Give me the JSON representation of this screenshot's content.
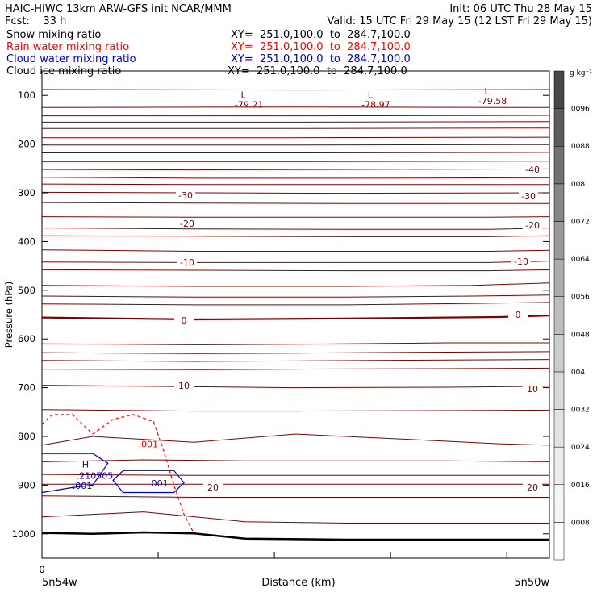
{
  "header": {
    "line1_left": "HAIC-HIWC 13km ARW-GFS init    NCAR/MMM",
    "line1_right": "Init: 06 UTC Thu 28 May 15",
    "line2_left": "Fcst:    33 h",
    "line2_right": "Valid: 15 UTC Fri 29 May 15 (12 LST Fri 29 May 15)",
    "fields": [
      {
        "name": "Snow mixing ratio",
        "xy": "XY=  251.0,100.0  to  284.7,100.0",
        "color": "#000000"
      },
      {
        "name": "Rain water mixing ratio",
        "xy": "XY=  251.0,100.0  to  284.7,100.0",
        "color": "#ff0000"
      },
      {
        "name": "Cloud water mixing ratio",
        "xy": "XY=  251.0,100.0  to  284.7,100.0",
        "color": "#0000cc"
      },
      {
        "name": "Cloud ice mixing ratio",
        "xy": "XY=  251.0,100.0  to  284.7,100.0",
        "color": "#000000"
      }
    ]
  },
  "chart_data": {
    "type": "line",
    "xlabel": "Distance (km)",
    "ylabel": "Pressure (hPa)",
    "x_tick_labels": [
      "0"
    ],
    "x_end_labels": {
      "left": "5n54w",
      "right": "5n50w"
    },
    "y_ticks": [
      100,
      200,
      300,
      400,
      500,
      600,
      700,
      800,
      900,
      1000
    ],
    "ylim": [
      1050,
      50
    ],
    "xlim": [
      0,
      100
    ],
    "colorbar": {
      "unit": "g kg⁻¹",
      "tick_labels": [
        ".0008",
        ".0016",
        ".0024",
        ".0032",
        ".004",
        ".0048",
        ".0056",
        ".0064",
        ".0072",
        ".008",
        ".0088",
        ".0096"
      ],
      "shades": [
        "#ffffff",
        "#f6f6f6",
        "#ededed",
        "#e3e3e3",
        "#d8d8d8",
        "#cccccc",
        "#bdbdbd",
        "#adadad",
        "#9a9a9a",
        "#868686",
        "#717171",
        "#5c5c5c",
        "#474747"
      ]
    },
    "temperature_contours": {
      "color": "#800000",
      "lines": [
        {
          "x": [
            0,
            50,
            100
          ],
          "p": [
            88,
            89,
            88
          ]
        },
        {
          "x": [
            0,
            50,
            100
          ],
          "p": [
            125,
            124,
            125
          ]
        },
        {
          "x": [
            0,
            50,
            100
          ],
          "p": [
            142,
            142,
            141
          ]
        },
        {
          "x": [
            0,
            50,
            100
          ],
          "p": [
            155,
            155,
            154
          ]
        },
        {
          "x": [
            0,
            50,
            100
          ],
          "p": [
            168,
            168,
            167
          ]
        },
        {
          "x": [
            0,
            50,
            100
          ],
          "p": [
            187,
            187,
            186
          ]
        },
        {
          "x": [
            0,
            50,
            100
          ],
          "p": [
            202,
            202,
            201
          ]
        },
        {
          "x": [
            0,
            50,
            100
          ],
          "p": [
            218,
            218,
            217
          ]
        },
        {
          "x": [
            0,
            50,
            100
          ],
          "p": [
            236,
            236,
            235
          ]
        },
        {
          "x": [
            0,
            30,
            60,
            100
          ],
          "p": [
            252,
            253,
            252,
            251
          ]
        },
        {
          "x": [
            0,
            30,
            60,
            100
          ],
          "p": [
            268,
            270,
            270,
            269
          ]
        },
        {
          "x": [
            0,
            30,
            60,
            100
          ],
          "p": [
            282,
            283,
            283,
            283
          ]
        },
        {
          "x": [
            0,
            30,
            60,
            100
          ],
          "p": [
            299,
            300,
            301,
            300
          ]
        },
        {
          "x": [
            0,
            30,
            60,
            88,
            100
          ],
          "p": [
            320,
            321,
            322,
            322,
            322
          ]
        },
        {
          "x": [
            0,
            30,
            60,
            88,
            100
          ],
          "p": [
            349,
            350,
            350,
            350,
            349
          ]
        },
        {
          "x": [
            0,
            30,
            60,
            88,
            100
          ],
          "p": [
            372,
            374,
            375,
            375,
            372
          ]
        },
        {
          "x": [
            0,
            30,
            60,
            88,
            100
          ],
          "p": [
            388,
            389,
            390,
            390,
            388
          ]
        },
        {
          "x": [
            0,
            30,
            60,
            88,
            100
          ],
          "p": [
            417,
            420,
            420,
            420,
            418
          ]
        },
        {
          "x": [
            0,
            30,
            60,
            88,
            100
          ],
          "p": [
            442,
            443,
            443,
            443,
            440
          ]
        },
        {
          "x": [
            0,
            30,
            60,
            88,
            100
          ],
          "p": [
            458,
            459,
            460,
            460,
            458
          ]
        },
        {
          "x": [
            0,
            30,
            60,
            85,
            100
          ],
          "p": [
            490,
            492,
            492,
            490,
            485
          ]
        },
        {
          "x": [
            0,
            30,
            60,
            85,
            100
          ],
          "p": [
            512,
            514,
            514,
            512,
            510
          ]
        },
        {
          "x": [
            0,
            30,
            60,
            85,
            100
          ],
          "p": [
            528,
            530,
            530,
            527,
            525
          ]
        },
        {
          "x": [
            0,
            30,
            50,
            80,
            100
          ],
          "p": [
            610,
            612,
            611,
            608,
            608
          ]
        },
        {
          "x": [
            0,
            30,
            50,
            80,
            100
          ],
          "p": [
            628,
            630,
            629,
            627,
            626
          ]
        },
        {
          "x": [
            0,
            30,
            50,
            80,
            100
          ],
          "p": [
            644,
            646,
            645,
            643,
            642
          ]
        },
        {
          "x": [
            0,
            30,
            50,
            80,
            100
          ],
          "p": [
            662,
            663,
            662,
            661,
            660
          ]
        },
        {
          "x": [
            0,
            30,
            50,
            80,
            100
          ],
          "p": [
            695,
            698,
            700,
            699,
            697
          ]
        },
        {
          "x": [
            0,
            30,
            50,
            80,
            100
          ],
          "p": [
            745,
            748,
            748,
            747,
            746
          ]
        },
        {
          "x": [
            0,
            10,
            30,
            50,
            70,
            90,
            100
          ],
          "p": [
            818,
            800,
            812,
            795,
            805,
            815,
            818
          ]
        },
        {
          "x": [
            0,
            20,
            40,
            60,
            80,
            100
          ],
          "p": [
            852,
            848,
            850,
            850,
            850,
            852
          ]
        },
        {
          "x": [
            0,
            30,
            60,
            100
          ],
          "p": [
            878,
            880,
            880,
            880
          ]
        },
        {
          "x": [
            0,
            30,
            60,
            100
          ],
          "p": [
            898,
            898,
            898,
            898
          ]
        },
        {
          "x": [
            0,
            30,
            60,
            100
          ],
          "p": [
            922,
            925,
            925,
            925
          ]
        },
        {
          "x": [
            0,
            20,
            40,
            60,
            100
          ],
          "p": [
            965,
            955,
            975,
            978,
            978
          ]
        }
      ],
      "labeled_levels": [
        "-40",
        "-30",
        "-20",
        "-10",
        "0",
        "10",
        "20"
      ]
    },
    "zero_isotherm": {
      "x": [
        0,
        30,
        60,
        90,
        100
      ],
      "p": [
        556,
        560,
        558,
        555,
        552
      ]
    },
    "terrain": {
      "x": [
        0,
        10,
        20,
        30,
        40,
        60,
        100
      ],
      "p": [
        998,
        1000,
        997,
        999,
        1010,
        1012,
        1012
      ]
    },
    "lows": [
      {
        "marker": "L",
        "x": 40,
        "p": 92,
        "value": "-79.21"
      },
      {
        "marker": "L",
        "x": 65,
        "p": 92,
        "value": "-78.97"
      },
      {
        "marker": "L",
        "x": 88,
        "p": 85,
        "value": "-79.58"
      }
    ],
    "rain_contour": {
      "label": ".001",
      "color": "#ff0000",
      "x": [
        0,
        2,
        6,
        10,
        14,
        18,
        22,
        24,
        26,
        28,
        30
      ],
      "p": [
        775,
        755,
        755,
        795,
        765,
        755,
        770,
        830,
        900,
        960,
        1000
      ]
    },
    "cloud_water": {
      "color": "#0000cc",
      "high": {
        "marker": "H",
        "x": 6,
        "p": 870,
        "value": ".210505"
      },
      "label": ".001",
      "contours": [
        {
          "x": [
            0,
            10,
            13,
            10,
            6,
            0
          ],
          "p": [
            835,
            835,
            855,
            900,
            905,
            915
          ]
        },
        {
          "x": [
            16,
            26,
            28,
            26,
            16,
            14,
            16
          ],
          "p": [
            870,
            870,
            895,
            915,
            915,
            890,
            870
          ]
        }
      ]
    }
  }
}
